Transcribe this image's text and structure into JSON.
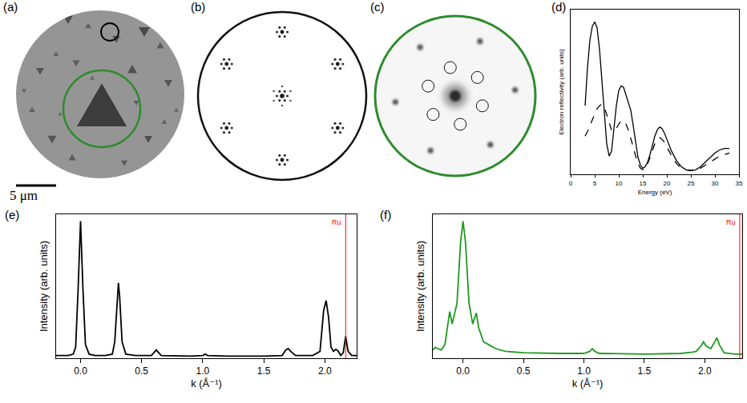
{
  "images": [
    {
      "panel": "(a)",
      "scale_bar": "5 μm"
    },
    {
      "panel": "(b)"
    },
    {
      "panel": "(c)"
    }
  ],
  "chart_data": [
    {
      "panel": "(d)",
      "type": "line",
      "x_label": "Energy (eV)",
      "y_label": "Electron reflectivity (arb. units)",
      "x": [
        3,
        3.5,
        4,
        4.5,
        5,
        5.5,
        6,
        6.5,
        7,
        7.5,
        8,
        8.5,
        9,
        9.5,
        10,
        10.5,
        11,
        11.5,
        12,
        12.5,
        13,
        13.5,
        14,
        14.5,
        15,
        15.5,
        16,
        16.5,
        17,
        17.5,
        18,
        18.5,
        19,
        19.5,
        20,
        21,
        22,
        23,
        24,
        25,
        26,
        27,
        28,
        29,
        30,
        31,
        32,
        33
      ],
      "series": [
        {
          "color": "#000000",
          "line_style": "solid",
          "values": [
            0.45,
            0.7,
            0.88,
            0.97,
            1.0,
            0.96,
            0.82,
            0.6,
            0.38,
            0.2,
            0.12,
            0.15,
            0.3,
            0.45,
            0.55,
            0.58,
            0.57,
            0.52,
            0.47,
            0.42,
            0.32,
            0.2,
            0.11,
            0.06,
            0.04,
            0.05,
            0.08,
            0.13,
            0.19,
            0.25,
            0.29,
            0.31,
            0.3,
            0.27,
            0.23,
            0.15,
            0.09,
            0.05,
            0.03,
            0.025,
            0.03,
            0.05,
            0.08,
            0.11,
            0.14,
            0.16,
            0.17,
            0.17
          ]
        },
        {
          "color": "#000000",
          "line_style": "dashed",
          "values": [
            0.25,
            0.28,
            0.32,
            0.36,
            0.4,
            0.43,
            0.45,
            0.46,
            0.44,
            0.39,
            0.33,
            0.29,
            0.28,
            0.3,
            0.33,
            0.35,
            0.35,
            0.33,
            0.29,
            0.24,
            0.18,
            0.12,
            0.07,
            0.04,
            0.03,
            0.04,
            0.07,
            0.11,
            0.16,
            0.2,
            0.23,
            0.24,
            0.23,
            0.21,
            0.18,
            0.12,
            0.07,
            0.04,
            0.03,
            0.025,
            0.03,
            0.04,
            0.06,
            0.08,
            0.1,
            0.12,
            0.13,
            0.14
          ]
        }
      ],
      "xlim": [
        0,
        35
      ],
      "xticks": [
        0,
        5,
        10,
        15,
        20,
        25,
        30,
        35
      ],
      "ylim": [
        0,
        1.08
      ],
      "tick_labels": "x"
    },
    {
      "panel": "(e)",
      "type": "line",
      "x_label": "k (Å⁻¹)",
      "y_label": "Intensity (arb. units)",
      "x": [
        -0.2,
        -0.1,
        -0.06,
        -0.04,
        -0.02,
        0,
        0.02,
        0.04,
        0.07,
        0.12,
        0.2,
        0.26,
        0.28,
        0.3,
        0.31,
        0.32,
        0.34,
        0.37,
        0.45,
        0.58,
        0.61,
        0.62,
        0.63,
        0.66,
        0.9,
        1.0,
        1.02,
        1.04,
        1.2,
        1.5,
        1.65,
        1.68,
        1.7,
        1.72,
        1.76,
        1.9,
        1.96,
        1.99,
        2.01,
        2.03,
        2.05,
        2.07,
        2.09,
        2.11,
        2.13,
        2.15,
        2.17,
        2.19,
        2.22,
        2.26
      ],
      "series": [
        {
          "color": "#000000",
          "line_style": "solid",
          "values": [
            0.02,
            0.02,
            0.03,
            0.08,
            0.5,
            1.0,
            0.5,
            0.1,
            0.03,
            0.02,
            0.02,
            0.03,
            0.12,
            0.45,
            0.55,
            0.45,
            0.12,
            0.03,
            0.02,
            0.02,
            0.05,
            0.06,
            0.05,
            0.02,
            0.015,
            0.02,
            0.03,
            0.02,
            0.015,
            0.015,
            0.02,
            0.06,
            0.07,
            0.05,
            0.02,
            0.02,
            0.05,
            0.35,
            0.42,
            0.3,
            0.08,
            0.05,
            0.065,
            0.05,
            0.02,
            0.04,
            0.16,
            0.05,
            0.02,
            0.02
          ]
        }
      ],
      "xlim": [
        -0.2,
        2.26
      ],
      "xticks": [
        {
          "value": 0,
          "label": "0.0"
        },
        0.5,
        {
          "value": 1,
          "label": "1.0"
        },
        1.5,
        {
          "value": 2,
          "label": "2.0"
        }
      ],
      "ylim": [
        0,
        1.05
      ],
      "tick_labels": "x",
      "annotations": [
        {
          "text": "Ru",
          "x": 2.17,
          "color": "#ff0000"
        }
      ]
    },
    {
      "panel": "(f)",
      "type": "line",
      "x_label": "k (Å⁻¹)",
      "y_label": "Intensity (arb. units)",
      "x": [
        -0.25,
        -0.23,
        -0.21,
        -0.18,
        -0.15,
        -0.12,
        -0.11,
        -0.09,
        -0.05,
        -0.02,
        0,
        0.02,
        0.05,
        0.08,
        0.1,
        0.11,
        0.13,
        0.17,
        0.21,
        0.23,
        0.27,
        0.35,
        0.5,
        0.8,
        1.0,
        1.05,
        1.07,
        1.09,
        1.13,
        1.5,
        1.8,
        1.9,
        1.93,
        1.97,
        1.99,
        2.01,
        2.05,
        2.09,
        2.1,
        2.12,
        2.16,
        2.25,
        2.31
      ],
      "series": [
        {
          "color": "#1e9a1e",
          "line_style": "solid",
          "values": [
            0.06,
            0.08,
            0.07,
            0.06,
            0.1,
            0.3,
            0.34,
            0.25,
            0.4,
            0.85,
            1.0,
            0.85,
            0.4,
            0.25,
            0.3,
            0.33,
            0.22,
            0.12,
            0.1,
            0.09,
            0.07,
            0.05,
            0.04,
            0.035,
            0.035,
            0.05,
            0.07,
            0.05,
            0.035,
            0.03,
            0.035,
            0.045,
            0.05,
            0.09,
            0.12,
            0.09,
            0.07,
            0.13,
            0.15,
            0.1,
            0.04,
            0.03,
            0.03
          ]
        }
      ],
      "xlim": [
        -0.25,
        2.31
      ],
      "xticks": [
        {
          "value": 0,
          "label": "0.0"
        },
        0.5,
        {
          "value": 1,
          "label": "1.0"
        },
        1.5,
        {
          "value": 2,
          "label": "2.0"
        }
      ],
      "ylim": [
        0,
        1.05
      ],
      "tick_labels": "x",
      "annotations": [
        {
          "text": "Ru",
          "x": 2.29,
          "color": "#ff0000"
        }
      ]
    }
  ]
}
